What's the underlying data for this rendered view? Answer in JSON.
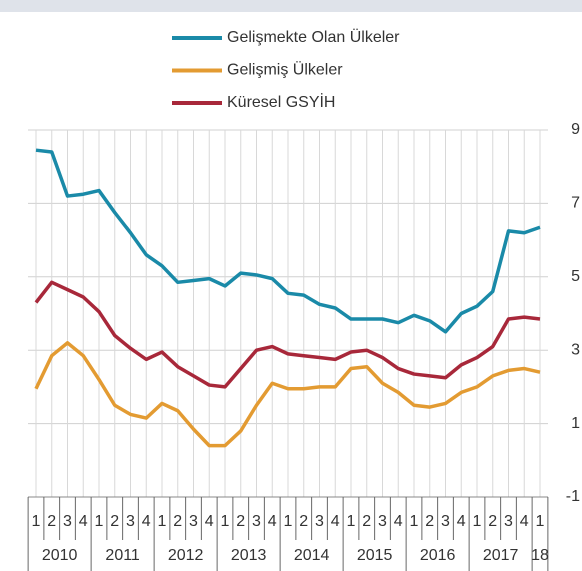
{
  "chart_data": {
    "type": "line",
    "categories": [
      "1",
      "2",
      "3",
      "4",
      "1",
      "2",
      "3",
      "4",
      "1",
      "2",
      "3",
      "4",
      "1",
      "2",
      "3",
      "4",
      "1",
      "2",
      "3",
      "4",
      "1",
      "2",
      "3",
      "4",
      "1",
      "2",
      "3",
      "4",
      "1",
      "2",
      "3",
      "4",
      "1"
    ],
    "x_groups": [
      "2010",
      "2011",
      "2012",
      "2013",
      "2014",
      "2015",
      "2016",
      "2017",
      "18"
    ],
    "series": [
      {
        "name": "Gelişmekte Olan Ülkeler",
        "color": "#1a8aa8",
        "values": [
          8.45,
          8.4,
          7.2,
          7.25,
          7.35,
          6.75,
          6.2,
          5.6,
          5.3,
          4.85,
          4.9,
          4.95,
          4.75,
          5.1,
          5.05,
          4.95,
          4.55,
          4.5,
          4.25,
          4.15,
          3.85,
          3.85,
          3.85,
          3.75,
          3.95,
          3.8,
          3.5,
          4.0,
          4.2,
          4.6,
          6.25,
          6.2,
          6.35
        ]
      },
      {
        "name": "Gelişmiş Ülkeler",
        "color": "#e39b32",
        "values": [
          1.95,
          2.85,
          3.2,
          2.85,
          2.2,
          1.5,
          1.25,
          1.15,
          1.55,
          1.35,
          0.85,
          0.4,
          0.4,
          0.8,
          1.5,
          2.1,
          1.95,
          1.95,
          2.0,
          2.0,
          2.5,
          2.55,
          2.1,
          1.85,
          1.5,
          1.45,
          1.55,
          1.85,
          2.0,
          2.3,
          2.45,
          2.5,
          2.4
        ]
      },
      {
        "name": "Küresel GSYİH",
        "color": "#a8283a",
        "values": [
          4.3,
          4.85,
          4.65,
          4.45,
          4.05,
          3.4,
          3.05,
          2.75,
          2.95,
          2.55,
          2.3,
          2.05,
          2.0,
          2.5,
          3.0,
          3.1,
          2.9,
          2.85,
          2.8,
          2.75,
          2.95,
          3.0,
          2.8,
          2.5,
          2.35,
          2.3,
          2.25,
          2.6,
          2.8,
          3.1,
          3.85,
          3.9,
          3.85
        ]
      }
    ],
    "ylim": [
      -1,
      9
    ],
    "yticks": [
      -1,
      1,
      3,
      5,
      7,
      9
    ],
    "grid": true
  }
}
